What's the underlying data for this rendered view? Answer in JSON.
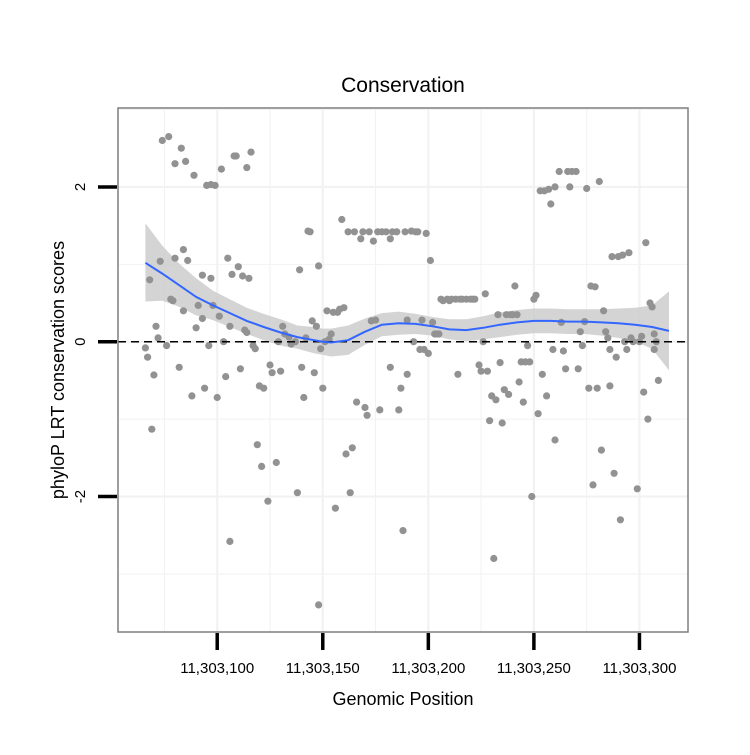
{
  "chart_data": {
    "type": "scatter",
    "title": "Conservation",
    "xlabel": "Genomic Position",
    "ylabel": "phyloP LRT conservation scores",
    "xlim": [
      11303053,
      11303323
    ],
    "ylim": [
      -3.75,
      3.02
    ],
    "x_ticks": [
      11303100,
      11303150,
      11303200,
      11303250,
      11303300
    ],
    "x_tick_labels": [
      "11,303,100",
      "11,303,150",
      "11,303,200",
      "11,303,250",
      "11,303,300"
    ],
    "y_ticks": [
      -2,
      0,
      2
    ],
    "y_tick_labels": [
      "-2",
      "0",
      "2"
    ],
    "grid": true,
    "reference_line": {
      "y": 0,
      "style": "dashed"
    },
    "colors": {
      "points": "#929292",
      "smooth": "#3366ff",
      "ribbon": "#cccccc",
      "grid": "#f2f2f2",
      "reference": "#000000",
      "panel_border": "#7f7f7f"
    },
    "points": [
      [
        11303066,
        -0.08
      ],
      [
        11303067,
        -0.2
      ],
      [
        11303068,
        0.8
      ],
      [
        11303069,
        -1.13
      ],
      [
        11303070,
        -0.43
      ],
      [
        11303071,
        0.2
      ],
      [
        11303072,
        0.05
      ],
      [
        11303073,
        1.04
      ],
      [
        11303074,
        2.6
      ],
      [
        11303076,
        -0.05
      ],
      [
        11303077,
        2.65
      ],
      [
        11303078,
        0.55
      ],
      [
        11303079,
        0.53
      ],
      [
        11303080,
        1.08
      ],
      [
        11303080,
        2.3
      ],
      [
        11303082,
        -0.33
      ],
      [
        11303083,
        2.5
      ],
      [
        11303084,
        1.19
      ],
      [
        11303084,
        0.4
      ],
      [
        11303085,
        2.33
      ],
      [
        11303086,
        1.05
      ],
      [
        11303088,
        -0.7
      ],
      [
        11303089,
        2.15
      ],
      [
        11303090,
        0.18
      ],
      [
        11303091,
        0.47
      ],
      [
        11303093,
        0.3
      ],
      [
        11303093,
        0.86
      ],
      [
        11303094,
        -0.6
      ],
      [
        11303095,
        2.02
      ],
      [
        11303096,
        -0.05
      ],
      [
        11303097,
        2.03
      ],
      [
        11303097,
        0.82
      ],
      [
        11303098,
        0.47
      ],
      [
        11303099,
        2.02
      ],
      [
        11303100,
        -0.72
      ],
      [
        11303101,
        0.33
      ],
      [
        11303102,
        2.23
      ],
      [
        11303103,
        0.0
      ],
      [
        11303104,
        -0.45
      ],
      [
        11303105,
        1.08
      ],
      [
        11303106,
        -2.58
      ],
      [
        11303106,
        0.2
      ],
      [
        11303107,
        0.87
      ],
      [
        11303108,
        2.4
      ],
      [
        11303109,
        2.4
      ],
      [
        11303110,
        0.97
      ],
      [
        11303111,
        -0.35
      ],
      [
        11303112,
        0.85
      ],
      [
        11303113,
        0.15
      ],
      [
        11303114,
        2.25
      ],
      [
        11303114,
        0.12
      ],
      [
        11303115,
        0.82
      ],
      [
        11303116,
        2.45
      ],
      [
        11303117,
        -0.05
      ],
      [
        11303118,
        -0.09
      ],
      [
        11303119,
        -1.33
      ],
      [
        11303120,
        -0.57
      ],
      [
        11303121,
        -1.61
      ],
      [
        11303122,
        -0.6
      ],
      [
        11303124,
        -2.06
      ],
      [
        11303125,
        -0.3
      ],
      [
        11303126,
        -0.4
      ],
      [
        11303128,
        -1.56
      ],
      [
        11303129,
        0.0
      ],
      [
        11303130,
        -0.38
      ],
      [
        11303131,
        0.2
      ],
      [
        11303132,
        0.1
      ],
      [
        11303134,
        0.06
      ],
      [
        11303135,
        -0.03
      ],
      [
        11303137,
        0.0
      ],
      [
        11303138,
        -1.95
      ],
      [
        11303139,
        0.93
      ],
      [
        11303140,
        -0.33
      ],
      [
        11303141,
        -0.72
      ],
      [
        11303142,
        0.05
      ],
      [
        11303143,
        1.43
      ],
      [
        11303144,
        1.42
      ],
      [
        11303145,
        0.27
      ],
      [
        11303146,
        -0.4
      ],
      [
        11303147,
        0.2
      ],
      [
        11303148,
        -3.4
      ],
      [
        11303148,
        0.98
      ],
      [
        11303149,
        -0.09
      ],
      [
        11303150,
        -0.6
      ],
      [
        11303151,
        0.0
      ],
      [
        11303152,
        0.4
      ],
      [
        11303153,
        0.03
      ],
      [
        11303154,
        0.1
      ],
      [
        11303155,
        0.38
      ],
      [
        11303156,
        -2.15
      ],
      [
        11303157,
        0.38
      ],
      [
        11303158,
        0.42
      ],
      [
        11303159,
        1.58
      ],
      [
        11303160,
        0.44
      ],
      [
        11303161,
        -1.45
      ],
      [
        11303162,
        1.42
      ],
      [
        11303163,
        -1.95
      ],
      [
        11303164,
        -1.37
      ],
      [
        11303165,
        1.42
      ],
      [
        11303166,
        -0.78
      ],
      [
        11303168,
        1.33
      ],
      [
        11303169,
        1.42
      ],
      [
        11303170,
        -0.85
      ],
      [
        11303171,
        -0.95
      ],
      [
        11303172,
        1.42
      ],
      [
        11303173,
        0.27
      ],
      [
        11303174,
        1.3
      ],
      [
        11303175,
        0.28
      ],
      [
        11303176,
        1.42
      ],
      [
        11303177,
        -0.88
      ],
      [
        11303178,
        1.42
      ],
      [
        11303180,
        1.42
      ],
      [
        11303182,
        1.33
      ],
      [
        11303182,
        -0.33
      ],
      [
        11303183,
        1.42
      ],
      [
        11303185,
        1.42
      ],
      [
        11303186,
        -0.88
      ],
      [
        11303187,
        -0.6
      ],
      [
        11303188,
        -2.44
      ],
      [
        11303189,
        1.42
      ],
      [
        11303190,
        -0.42
      ],
      [
        11303190,
        0.28
      ],
      [
        11303192,
        1.43
      ],
      [
        11303193,
        0.0
      ],
      [
        11303194,
        1.42
      ],
      [
        11303195,
        1.42
      ],
      [
        11303196,
        -0.1
      ],
      [
        11303197,
        0.28
      ],
      [
        11303198,
        -0.1
      ],
      [
        11303199,
        1.4
      ],
      [
        11303200,
        -0.15
      ],
      [
        11303201,
        1.05
      ],
      [
        11303202,
        0.25
      ],
      [
        11303203,
        0.1
      ],
      [
        11303204,
        0.1
      ],
      [
        11303205,
        0.1
      ],
      [
        11303206,
        0.55
      ],
      [
        11303207,
        0.53
      ],
      [
        11303209,
        0.55
      ],
      [
        11303210,
        0.53
      ],
      [
        11303211,
        0.55
      ],
      [
        11303213,
        0.55
      ],
      [
        11303214,
        -0.42
      ],
      [
        11303215,
        0.55
      ],
      [
        11303216,
        0.55
      ],
      [
        11303218,
        0.55
      ],
      [
        11303220,
        0.55
      ],
      [
        11303221,
        0.55
      ],
      [
        11303222,
        0.55
      ],
      [
        11303224,
        -0.3
      ],
      [
        11303225,
        -0.38
      ],
      [
        11303226,
        0.0
      ],
      [
        11303227,
        0.62
      ],
      [
        11303228,
        -0.38
      ],
      [
        11303229,
        -1.02
      ],
      [
        11303230,
        -0.7
      ],
      [
        11303231,
        -2.8
      ],
      [
        11303232,
        -0.75
      ],
      [
        11303233,
        0.35
      ],
      [
        11303234,
        -0.27
      ],
      [
        11303235,
        -1.05
      ],
      [
        11303236,
        -0.62
      ],
      [
        11303237,
        0.35
      ],
      [
        11303238,
        -0.68
      ],
      [
        11303239,
        0.35
      ],
      [
        11303240,
        0.35
      ],
      [
        11303241,
        0.72
      ],
      [
        11303242,
        0.35
      ],
      [
        11303243,
        -0.52
      ],
      [
        11303244,
        -0.26
      ],
      [
        11303245,
        -0.78
      ],
      [
        11303246,
        -0.26
      ],
      [
        11303247,
        -0.05
      ],
      [
        11303248,
        -0.26
      ],
      [
        11303249,
        -2.0
      ],
      [
        11303250,
        0.55
      ],
      [
        11303251,
        0.6
      ],
      [
        11303252,
        -0.93
      ],
      [
        11303253,
        1.95
      ],
      [
        11303254,
        -0.42
      ],
      [
        11303255,
        1.95
      ],
      [
        11303256,
        -0.7
      ],
      [
        11303257,
        1.97
      ],
      [
        11303258,
        1.78
      ],
      [
        11303259,
        -0.1
      ],
      [
        11303260,
        2.0
      ],
      [
        11303260,
        -1.27
      ],
      [
        11303262,
        2.2
      ],
      [
        11303263,
        0.25
      ],
      [
        11303264,
        -0.12
      ],
      [
        11303265,
        -0.35
      ],
      [
        11303266,
        2.2
      ],
      [
        11303267,
        2.0
      ],
      [
        11303268,
        2.2
      ],
      [
        11303270,
        2.2
      ],
      [
        11303271,
        -0.35
      ],
      [
        11303272,
        0.13
      ],
      [
        11303273,
        -0.05
      ],
      [
        11303274,
        0.26
      ],
      [
        11303275,
        1.98
      ],
      [
        11303276,
        -0.6
      ],
      [
        11303277,
        0.72
      ],
      [
        11303278,
        -1.85
      ],
      [
        11303279,
        0.71
      ],
      [
        11303280,
        -0.6
      ],
      [
        11303281,
        2.07
      ],
      [
        11303282,
        -1.4
      ],
      [
        11303283,
        0.4
      ],
      [
        11303284,
        0.13
      ],
      [
        11303285,
        0.05
      ],
      [
        11303286,
        -0.1
      ],
      [
        11303286,
        -0.57
      ],
      [
        11303287,
        1.1
      ],
      [
        11303288,
        -1.7
      ],
      [
        11303289,
        -0.2
      ],
      [
        11303290,
        1.1
      ],
      [
        11303291,
        -2.3
      ],
      [
        11303292,
        1.12
      ],
      [
        11303293,
        0.0
      ],
      [
        11303294,
        -0.1
      ],
      [
        11303295,
        1.15
      ],
      [
        11303296,
        0.05
      ],
      [
        11303297,
        0.0
      ],
      [
        11303299,
        -1.9
      ],
      [
        11303300,
        0.0
      ],
      [
        11303301,
        0.07
      ],
      [
        11303302,
        -0.65
      ],
      [
        11303303,
        1.28
      ],
      [
        11303304,
        -1.0
      ],
      [
        11303305,
        0.5
      ],
      [
        11303306,
        0.45
      ],
      [
        11303307,
        0.1
      ],
      [
        11303307,
        -0.1
      ],
      [
        11303308,
        0.0
      ],
      [
        11303309,
        -0.5
      ]
    ],
    "smooth_x": [
      11303066,
      11303074,
      11303082,
      11303090,
      11303098,
      11303106,
      11303114,
      11303122,
      11303130,
      11303138,
      11303146,
      11303150,
      11303154,
      11303162,
      11303170,
      11303178,
      11303186,
      11303194,
      11303202,
      11303210,
      11303218,
      11303226,
      11303234,
      11303242,
      11303250,
      11303258,
      11303266,
      11303274,
      11303282,
      11303290,
      11303298,
      11303306,
      11303314
    ],
    "smooth_y": [
      1.02,
      0.88,
      0.73,
      0.58,
      0.47,
      0.37,
      0.27,
      0.19,
      0.12,
      0.06,
      0.02,
      0.0,
      -0.01,
      0.02,
      0.13,
      0.22,
      0.24,
      0.23,
      0.2,
      0.16,
      0.15,
      0.18,
      0.22,
      0.25,
      0.27,
      0.27,
      0.26,
      0.26,
      0.25,
      0.24,
      0.22,
      0.19,
      0.14
    ],
    "band_upper": [
      1.53,
      1.24,
      1.01,
      0.82,
      0.66,
      0.55,
      0.44,
      0.36,
      0.29,
      0.21,
      0.19,
      0.17,
      0.17,
      0.21,
      0.3,
      0.37,
      0.39,
      0.36,
      0.32,
      0.29,
      0.29,
      0.33,
      0.38,
      0.41,
      0.43,
      0.43,
      0.42,
      0.42,
      0.42,
      0.43,
      0.44,
      0.47,
      0.65
    ],
    "band_lower": [
      0.52,
      0.53,
      0.45,
      0.34,
      0.28,
      0.19,
      0.1,
      0.02,
      -0.05,
      -0.09,
      -0.15,
      -0.17,
      -0.19,
      -0.17,
      -0.04,
      0.07,
      0.09,
      0.1,
      0.08,
      0.03,
      0.01,
      0.03,
      0.06,
      0.09,
      0.11,
      0.11,
      0.1,
      0.1,
      0.08,
      0.05,
      0.0,
      -0.09,
      -0.37
    ]
  }
}
